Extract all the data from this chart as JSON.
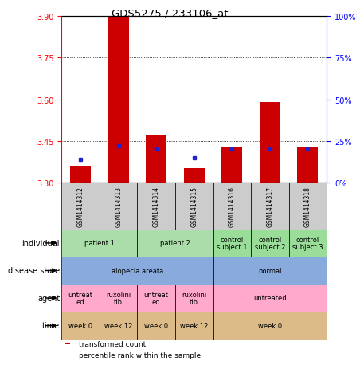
{
  "title": "GDS5275 / 233106_at",
  "samples": [
    "GSM1414312",
    "GSM1414313",
    "GSM1414314",
    "GSM1414315",
    "GSM1414316",
    "GSM1414317",
    "GSM1414318"
  ],
  "transformed_counts": [
    3.36,
    3.9,
    3.47,
    3.35,
    3.43,
    3.59,
    3.43
  ],
  "percentile_ranks": [
    14,
    22,
    20,
    15,
    20,
    20,
    20
  ],
  "ylim_left": [
    3.3,
    3.9
  ],
  "ylim_right": [
    0,
    100
  ],
  "yticks_left": [
    3.3,
    3.45,
    3.6,
    3.75,
    3.9
  ],
  "yticks_right": [
    0,
    25,
    50,
    75,
    100
  ],
  "bar_color": "#cc0000",
  "dot_color": "#2222cc",
  "bar_bottom": 3.3,
  "annotation_rows": [
    {
      "label": "individual",
      "groups": [
        {
          "cols": [
            0,
            1
          ],
          "text": "patient 1",
          "color": "#aaddaa"
        },
        {
          "cols": [
            2,
            3
          ],
          "text": "patient 2",
          "color": "#aaddaa"
        },
        {
          "cols": [
            4
          ],
          "text": "control\nsubject 1",
          "color": "#99dd99"
        },
        {
          "cols": [
            5
          ],
          "text": "control\nsubject 2",
          "color": "#99dd99"
        },
        {
          "cols": [
            6
          ],
          "text": "control\nsubject 3",
          "color": "#99dd99"
        }
      ]
    },
    {
      "label": "disease state",
      "groups": [
        {
          "cols": [
            0,
            1,
            2,
            3
          ],
          "text": "alopecia areata",
          "color": "#88aadd"
        },
        {
          "cols": [
            4,
            5,
            6
          ],
          "text": "normal",
          "color": "#88aadd"
        }
      ]
    },
    {
      "label": "agent",
      "groups": [
        {
          "cols": [
            0
          ],
          "text": "untreat\ned",
          "color": "#ffaacc"
        },
        {
          "cols": [
            1
          ],
          "text": "ruxolini\ntib",
          "color": "#ffaacc"
        },
        {
          "cols": [
            2
          ],
          "text": "untreat\ned",
          "color": "#ffaacc"
        },
        {
          "cols": [
            3
          ],
          "text": "ruxolini\ntib",
          "color": "#ffaacc"
        },
        {
          "cols": [
            4,
            5,
            6
          ],
          "text": "untreated",
          "color": "#ffaacc"
        }
      ]
    },
    {
      "label": "time",
      "groups": [
        {
          "cols": [
            0
          ],
          "text": "week 0",
          "color": "#ddbb88"
        },
        {
          "cols": [
            1
          ],
          "text": "week 12",
          "color": "#ddbb88"
        },
        {
          "cols": [
            2
          ],
          "text": "week 0",
          "color": "#ddbb88"
        },
        {
          "cols": [
            3
          ],
          "text": "week 12",
          "color": "#ddbb88"
        },
        {
          "cols": [
            4,
            5,
            6
          ],
          "text": "week 0",
          "color": "#ddbb88"
        }
      ]
    }
  ],
  "legend": [
    {
      "color": "#cc0000",
      "label": "transformed count"
    },
    {
      "color": "#2222cc",
      "label": "percentile rank within the sample"
    }
  ],
  "sample_cell_color": "#cccccc",
  "chart_bg": "#ffffff"
}
